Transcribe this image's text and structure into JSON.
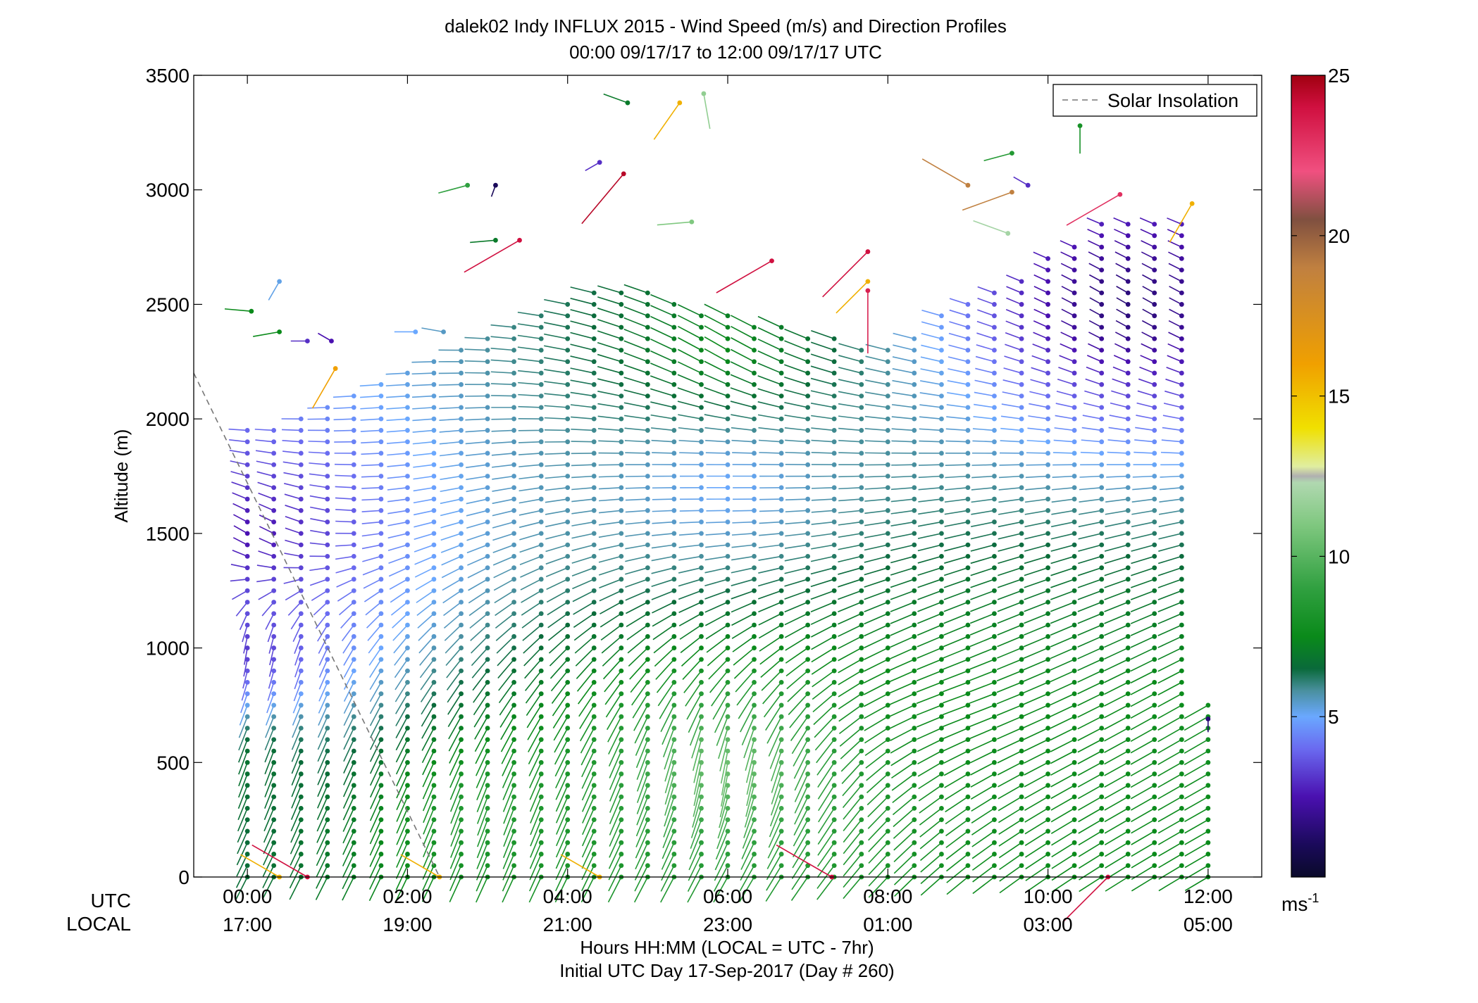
{
  "chart_data": {
    "type": "scatter",
    "title_lines": [
      "dalek02 Indy INFLUX 2015 - Wind Speed (m/s) and Direction Profiles",
      "00:00 09/17/17 to 12:00 09/17/17  UTC"
    ],
    "ylabel": "Altitude (m)",
    "ylim": [
      0,
      3500
    ],
    "y_ticks": [
      0,
      500,
      1000,
      1500,
      2000,
      2500,
      3000,
      3500
    ],
    "xlim_hours": [
      -0.67,
      12.67
    ],
    "x_ticks": [
      {
        "hour": 0,
        "utc": "00:00",
        "local": "17:00"
      },
      {
        "hour": 2,
        "utc": "02:00",
        "local": "19:00"
      },
      {
        "hour": 4,
        "utc": "04:00",
        "local": "21:00"
      },
      {
        "hour": 6,
        "utc": "06:00",
        "local": "23:00"
      },
      {
        "hour": 8,
        "utc": "08:00",
        "local": "01:00"
      },
      {
        "hour": 10,
        "utc": "10:00",
        "local": "03:00"
      },
      {
        "hour": 12,
        "utc": "12:00",
        "local": "05:00"
      }
    ],
    "row_labels": {
      "utc": "UTC",
      "local": "LOCAL"
    },
    "xlabel_lines": [
      "Hours HH:MM  (LOCAL = UTC - 7hr)",
      "Initial UTC Day 17-Sep-2017 (Day # 260)"
    ],
    "legend": {
      "label": "Solar Insolation",
      "position": "top-right",
      "style": "dashed",
      "color": "#777777"
    },
    "solar_insolation": {
      "x_hours": [
        -0.67,
        2.4
      ],
      "y": [
        2200,
        0
      ]
    },
    "colorbar": {
      "range": [
        0,
        25
      ],
      "ticks": [
        5,
        10,
        15,
        20,
        25
      ],
      "unit": "ms",
      "unit_exponent": "-1",
      "colors": [
        {
          "v": 0,
          "c": "#0a0a2a"
        },
        {
          "v": 1,
          "c": "#1a0a5a"
        },
        {
          "v": 2.5,
          "c": "#4a10b0"
        },
        {
          "v": 4,
          "c": "#6a6af0"
        },
        {
          "v": 5,
          "c": "#6aa8ff"
        },
        {
          "v": 5.8,
          "c": "#4a90a0"
        },
        {
          "v": 6.5,
          "c": "#0a6a3a"
        },
        {
          "v": 7.5,
          "c": "#0a8a1a"
        },
        {
          "v": 9,
          "c": "#30a040"
        },
        {
          "v": 11,
          "c": "#80c880"
        },
        {
          "v": 12.3,
          "c": "#b0d8b0"
        },
        {
          "v": 12.5,
          "c": "#b0b0b0"
        },
        {
          "v": 12.8,
          "c": "#e0eea0"
        },
        {
          "v": 14,
          "c": "#f0e000"
        },
        {
          "v": 16,
          "c": "#f0a000"
        },
        {
          "v": 19,
          "c": "#c08040"
        },
        {
          "v": 20.5,
          "c": "#805040"
        },
        {
          "v": 22,
          "c": "#f05080"
        },
        {
          "v": 24,
          "c": "#d01040"
        },
        {
          "v": 25,
          "c": "#a00010"
        }
      ]
    },
    "profiles": {
      "times_hours": [
        0,
        0.33,
        0.67,
        1,
        1.33,
        1.67,
        2,
        2.33,
        2.67,
        3,
        3.33,
        3.67,
        4,
        4.33,
        4.67,
        5,
        5.33,
        5.67,
        6,
        6.33,
        6.67,
        7,
        7.33,
        7.67,
        8,
        8.33,
        8.67,
        9,
        9.33,
        9.67,
        10,
        10.33,
        10.67,
        11,
        11.33,
        11.67,
        12
      ],
      "altitude_step_m": 50,
      "top_altitude_m": [
        1950,
        1950,
        2000,
        2050,
        2100,
        2150,
        2200,
        2250,
        2300,
        2350,
        2400,
        2450,
        2500,
        2550,
        2580,
        2550,
        2520,
        2480,
        2450,
        2420,
        2400,
        2380,
        2350,
        2320,
        2300,
        2380,
        2450,
        2500,
        2550,
        2620,
        2700,
        2780,
        2850,
        2850,
        2850,
        2850,
        750
      ],
      "samples": [
        {
          "t_hours": 0,
          "alt_m": 500,
          "speed_ms": 6.8,
          "dir_deg": 200
        },
        {
          "t_hours": 0,
          "alt_m": 1000,
          "speed_ms": 3.2,
          "dir_deg": 190
        },
        {
          "t_hours": 0,
          "alt_m": 1500,
          "speed_ms": 2.5,
          "dir_deg": 300
        },
        {
          "t_hours": 3,
          "alt_m": 300,
          "speed_ms": 8.5,
          "dir_deg": 200
        },
        {
          "t_hours": 6,
          "alt_m": 500,
          "speed_ms": 10.5,
          "dir_deg": 190
        },
        {
          "t_hours": 6,
          "alt_m": 1700,
          "speed_ms": 5.0,
          "dir_deg": 270
        },
        {
          "t_hours": 6,
          "alt_m": 2300,
          "speed_ms": 7.5,
          "dir_deg": 300
        },
        {
          "t_hours": 9,
          "alt_m": 800,
          "speed_ms": 7.5,
          "dir_deg": 250
        },
        {
          "t_hours": 11,
          "alt_m": 2500,
          "speed_ms": 1.5,
          "dir_deg": 300
        },
        {
          "t_hours": 12,
          "alt_m": 600,
          "speed_ms": 7.8,
          "dir_deg": 240
        }
      ]
    },
    "isolated_barbs": [
      {
        "t_hours": 0.05,
        "alt_m": 2470,
        "speed_ms": 7.5,
        "dir_deg": 275
      },
      {
        "t_hours": 0.4,
        "alt_m": 2380,
        "speed_ms": 7.5,
        "dir_deg": 260
      },
      {
        "t_hours": 0.4,
        "alt_m": 2600,
        "speed_ms": 5.2,
        "dir_deg": 210
      },
      {
        "t_hours": 0.75,
        "alt_m": 2340,
        "speed_ms": 3.0,
        "dir_deg": 270
      },
      {
        "t_hours": 1.05,
        "alt_m": 2340,
        "speed_ms": 2.5,
        "dir_deg": 300
      },
      {
        "t_hours": 1.1,
        "alt_m": 2220,
        "speed_ms": 16.0,
        "dir_deg": 210
      },
      {
        "t_hours": 2.1,
        "alt_m": 2380,
        "speed_ms": 5.0,
        "dir_deg": 270
      },
      {
        "t_hours": 2.45,
        "alt_m": 2380,
        "speed_ms": 5.5,
        "dir_deg": 280
      },
      {
        "t_hours": 2.75,
        "alt_m": 3020,
        "speed_ms": 9.0,
        "dir_deg": 255
      },
      {
        "t_hours": 3.1,
        "alt_m": 3020,
        "speed_ms": 1.0,
        "dir_deg": 200
      },
      {
        "t_hours": 3.1,
        "alt_m": 2780,
        "speed_ms": 7.0,
        "dir_deg": 265
      },
      {
        "t_hours": 3.4,
        "alt_m": 2780,
        "speed_ms": 24.0,
        "dir_deg": 240
      },
      {
        "t_hours": 4.4,
        "alt_m": 3120,
        "speed_ms": 3.0,
        "dir_deg": 240
      },
      {
        "t_hours": 4.7,
        "alt_m": 3070,
        "speed_ms": 24.5,
        "dir_deg": 220
      },
      {
        "t_hours": 4.75,
        "alt_m": 3380,
        "speed_ms": 7.0,
        "dir_deg": 290
      },
      {
        "t_hours": 5.4,
        "alt_m": 3380,
        "speed_ms": 15.5,
        "dir_deg": 215
      },
      {
        "t_hours": 5.7,
        "alt_m": 3420,
        "speed_ms": 11.5,
        "dir_deg": 170
      },
      {
        "t_hours": 5.55,
        "alt_m": 2860,
        "speed_ms": 11.0,
        "dir_deg": 265
      },
      {
        "t_hours": 6.55,
        "alt_m": 2690,
        "speed_ms": 24.0,
        "dir_deg": 240
      },
      {
        "t_hours": 7.75,
        "alt_m": 2730,
        "speed_ms": 24.0,
        "dir_deg": 225
      },
      {
        "t_hours": 7.75,
        "alt_m": 2600,
        "speed_ms": 15.5,
        "dir_deg": 225
      },
      {
        "t_hours": 7.75,
        "alt_m": 2560,
        "speed_ms": 23.5,
        "dir_deg": 180
      },
      {
        "t_hours": 9.0,
        "alt_m": 3020,
        "speed_ms": 19.0,
        "dir_deg": 300
      },
      {
        "t_hours": 9.55,
        "alt_m": 3160,
        "speed_ms": 8.5,
        "dir_deg": 255
      },
      {
        "t_hours": 9.5,
        "alt_m": 2810,
        "speed_ms": 12.0,
        "dir_deg": 290
      },
      {
        "t_hours": 9.55,
        "alt_m": 2990,
        "speed_ms": 19.0,
        "dir_deg": 250
      },
      {
        "t_hours": 9.75,
        "alt_m": 3020,
        "speed_ms": 3.0,
        "dir_deg": 300
      },
      {
        "t_hours": 10.4,
        "alt_m": 3280,
        "speed_ms": 8.0,
        "dir_deg": 180
      },
      {
        "t_hours": 10.9,
        "alt_m": 2980,
        "speed_ms": 23.0,
        "dir_deg": 240
      },
      {
        "t_hours": 11.8,
        "alt_m": 2940,
        "speed_ms": 15.5,
        "dir_deg": 210
      },
      {
        "t_hours": 12.0,
        "alt_m": 690,
        "speed_ms": 1.5,
        "dir_deg": 180
      },
      {
        "t_hours": 0.4,
        "alt_m": 0,
        "speed_ms": 15.5,
        "dir_deg": 300
      },
      {
        "t_hours": 0.75,
        "alt_m": 0,
        "speed_ms": 24.0,
        "dir_deg": 300
      },
      {
        "t_hours": 2.4,
        "alt_m": 0,
        "speed_ms": 15.5,
        "dir_deg": 300
      },
      {
        "t_hours": 4.4,
        "alt_m": 0,
        "speed_ms": 15.5,
        "dir_deg": 300
      },
      {
        "t_hours": 7.3,
        "alt_m": 0,
        "speed_ms": 24.0,
        "dir_deg": 300
      },
      {
        "t_hours": 10.75,
        "alt_m": 0,
        "speed_ms": 24.0,
        "dir_deg": 225
      }
    ]
  }
}
